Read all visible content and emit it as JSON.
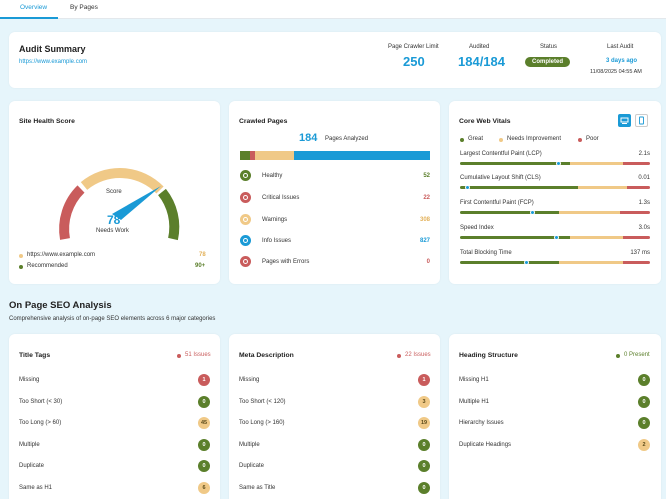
{
  "tabs": [
    {
      "label": "Overview"
    },
    {
      "label": "By Pages"
    }
  ],
  "audit": {
    "title": "Audit Summary",
    "url": "https://www.example.com",
    "stats": [
      {
        "label": "Page Crawler Limit",
        "value": "250"
      },
      {
        "label": "Audited",
        "value": "184/184"
      }
    ],
    "status_label": "Status",
    "status_value": "Completed",
    "last_label": "Last Audit",
    "last_ago": "3 days ago",
    "last_date": "11/08/2025 04:55 AM"
  },
  "health": {
    "title": "Site Health Score",
    "score_label": "Score",
    "score": "78",
    "status": "Needs Work",
    "legend": [
      {
        "label": "https://www.example.com",
        "value": "78",
        "color": "#f0c987"
      },
      {
        "label": "Recommended",
        "value": "90+",
        "color": "#5b7f2b"
      }
    ]
  },
  "crawled": {
    "title": "Crawled Pages",
    "count": "184",
    "count_label": "Pages Analyzed",
    "bar": [
      {
        "value": 10,
        "color": "#5b7f2b"
      },
      {
        "value": 5,
        "color": "#c95c5c"
      },
      {
        "value": 37,
        "color": "#f0c987"
      },
      {
        "value": 132,
        "color": "#1a9ad6"
      }
    ],
    "items": [
      {
        "label": "Healthy",
        "value": "52",
        "icon": "link-icon",
        "icon_bg": "#5b7f2b",
        "color": "#5b7f2b"
      },
      {
        "label": "Critical Issues",
        "value": "22",
        "icon": "broken-link-icon",
        "icon_bg": "#c95c5c",
        "color": "#c95c5c"
      },
      {
        "label": "Warnings",
        "value": "308",
        "icon": "warning-icon",
        "icon_bg": "#f0c987",
        "color": "#e3b15a"
      },
      {
        "label": "Info Issues",
        "value": "827",
        "icon": "external-link-icon",
        "icon_bg": "#1a9ad6",
        "color": "#1a9ad6"
      },
      {
        "label": "Pages with Errors",
        "value": "0",
        "icon": "block-icon",
        "icon_bg": "#c95c5c",
        "color": "#c95c5c"
      }
    ]
  },
  "cwv": {
    "title": "Core Web Vitals",
    "legend": [
      {
        "label": "Great",
        "color": "#5b7f2b"
      },
      {
        "label": "Needs Improvement",
        "color": "#f0c987"
      },
      {
        "label": "Poor",
        "color": "#c95c5c"
      }
    ],
    "metrics": [
      {
        "label": "Largest Contentful Paint (LCP)",
        "value": "2.1s",
        "pos": 0.52,
        "split": [
          0.58,
          0.86
        ]
      },
      {
        "label": "Cumulative Layout Shift (CLS)",
        "value": "0.01",
        "pos": 0.04,
        "split": [
          0.62,
          0.88
        ]
      },
      {
        "label": "First Contentful Paint (FCP)",
        "value": "1.3s",
        "pos": 0.38,
        "split": [
          0.52,
          0.84
        ]
      },
      {
        "label": "Speed Index",
        "value": "3.0s",
        "pos": 0.51,
        "split": [
          0.58,
          0.86
        ]
      },
      {
        "label": "Total Blocking Time",
        "value": "137 ms",
        "pos": 0.35,
        "split": [
          0.52,
          0.86
        ]
      }
    ]
  },
  "seo": {
    "title": "On Page SEO Analysis",
    "subtitle": "Comprehensive analysis of on-page SEO elements across 6 major categories",
    "cards": [
      {
        "title": "Title Tags",
        "issues": "51 Issues",
        "issue_color": "#c95c5c",
        "rows": [
          {
            "label": "Missing",
            "value": "1",
            "color": "#c95c5c"
          },
          {
            "label": "Too Short (< 30)",
            "value": "0",
            "color": "#5b7f2b"
          },
          {
            "label": "Too Long (> 60)",
            "value": "45",
            "color": "#f0c987"
          },
          {
            "label": "Multiple",
            "value": "0",
            "color": "#5b7f2b"
          },
          {
            "label": "Duplicate",
            "value": "0",
            "color": "#5b7f2b"
          },
          {
            "label": "Same as H1",
            "value": "6",
            "color": "#f0c987"
          }
        ]
      },
      {
        "title": "Meta Description",
        "issues": "22 Issues",
        "issue_color": "#c95c5c",
        "rows": [
          {
            "label": "Missing",
            "value": "1",
            "color": "#c95c5c"
          },
          {
            "label": "Too Short (< 120)",
            "value": "3",
            "color": "#f0c987"
          },
          {
            "label": "Too Long (> 160)",
            "value": "19",
            "color": "#f0c987"
          },
          {
            "label": "Multiple",
            "value": "0",
            "color": "#5b7f2b"
          },
          {
            "label": "Duplicate",
            "value": "0",
            "color": "#5b7f2b"
          },
          {
            "label": "Same as Title",
            "value": "0",
            "color": "#5b7f2b"
          }
        ]
      },
      {
        "title": "Heading Structure",
        "issues": "0 Present",
        "issue_color": "#5b7f2b",
        "rows": [
          {
            "label": "Missing H1",
            "value": "0",
            "color": "#5b7f2b"
          },
          {
            "label": "Multiple H1",
            "value": "0",
            "color": "#5b7f2b"
          },
          {
            "label": "Hierarchy Issues",
            "value": "0",
            "color": "#5b7f2b"
          },
          {
            "label": "Duplicate Headings",
            "value": "2",
            "color": "#f0c987"
          }
        ]
      }
    ]
  }
}
